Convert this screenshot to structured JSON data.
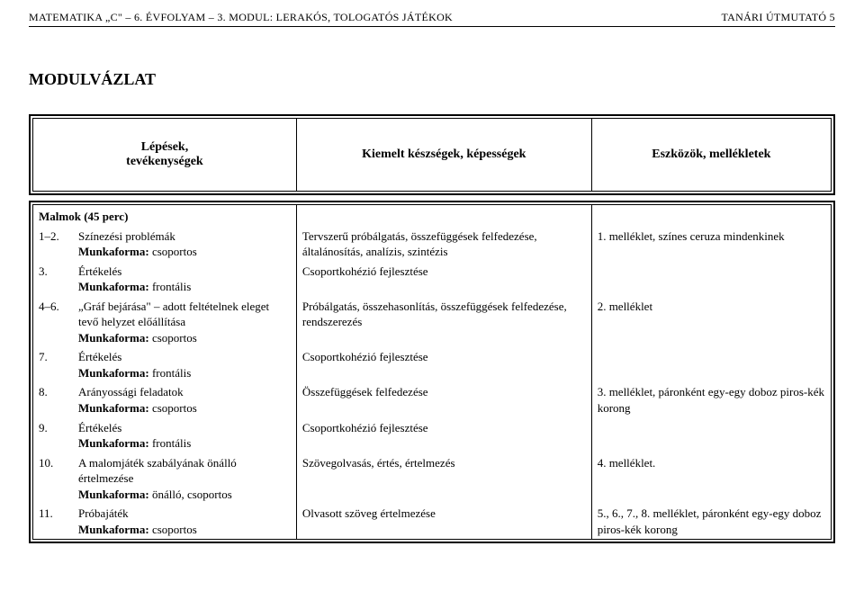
{
  "header": {
    "left": "MATEMATIKA „C\" – 6. ÉVFOLYAM – 3. MODUL: LERAKÓS, TOLOGATÓS JÁTÉKOK",
    "right": "TANÁRI ÚTMUTATÓ    5"
  },
  "title": "MODULVÁZLAT",
  "columns": {
    "c1a": "Lépések,",
    "c1b": "tevékenységek",
    "c2": "Kiemelt készségek, képességek",
    "c3": "Eszközök, mellékletek"
  },
  "section": "Malmok (45 perc)",
  "rows": [
    {
      "num": "1–2.",
      "c1_lines": [
        "Színezési problémák",
        "<b>Munkaforma:</b> csoportos"
      ],
      "c2": "Tervszerű próbálgatás, összefüggések felfedezése, általánosítás, analízis, szintézis",
      "c3": "1. melléklet, színes ceruza mindenkinek"
    },
    {
      "num": "3.",
      "c1_lines": [
        "Értékelés",
        "<b>Munkaforma:</b> frontális"
      ],
      "c2": "Csoportkohézió fejlesztése",
      "c3": ""
    },
    {
      "num": "4–6.",
      "c1_lines": [
        "„Gráf bejárása\" – adott feltételnek eleget tevő helyzet előállítása",
        "<b>Munkaforma:</b> csoportos"
      ],
      "c2": "Próbálgatás, összehasonlítás, összefüggések felfedezése, rendszerezés",
      "c3": "2. melléklet"
    },
    {
      "num": "7.",
      "c1_lines": [
        "Értékelés",
        "<b>Munkaforma:</b> frontális"
      ],
      "c2": "Csoportkohézió fejlesztése",
      "c3": ""
    },
    {
      "num": "8.",
      "c1_lines": [
        "Arányossági feladatok",
        "<b>Munkaforma:</b> csoportos"
      ],
      "c2": "Összefüggések felfedezése",
      "c3": "3. melléklet, páronként egy-egy doboz piros-kék korong"
    },
    {
      "num": "9.",
      "c1_lines": [
        "Értékelés",
        "<b>Munkaforma:</b> frontális"
      ],
      "c2": "Csoportkohézió fejlesztése",
      "c3": ""
    },
    {
      "num": "10.",
      "c1_lines": [
        "A malomjáték szabályának önálló értelmezése",
        "<b>Munkaforma:</b> önálló, csoportos"
      ],
      "c2": "Szövegolvasás, értés, értelmezés",
      "c3": "4. melléklet."
    },
    {
      "num": "11.",
      "c1_lines": [
        "Próbajáték",
        "<b>Munkaforma:</b> csoportos"
      ],
      "c2": "Olvasott szöveg értelmezése",
      "c3": "5., 6., 7., 8. melléklet, páronként egy-egy doboz piros-kék korong"
    }
  ]
}
